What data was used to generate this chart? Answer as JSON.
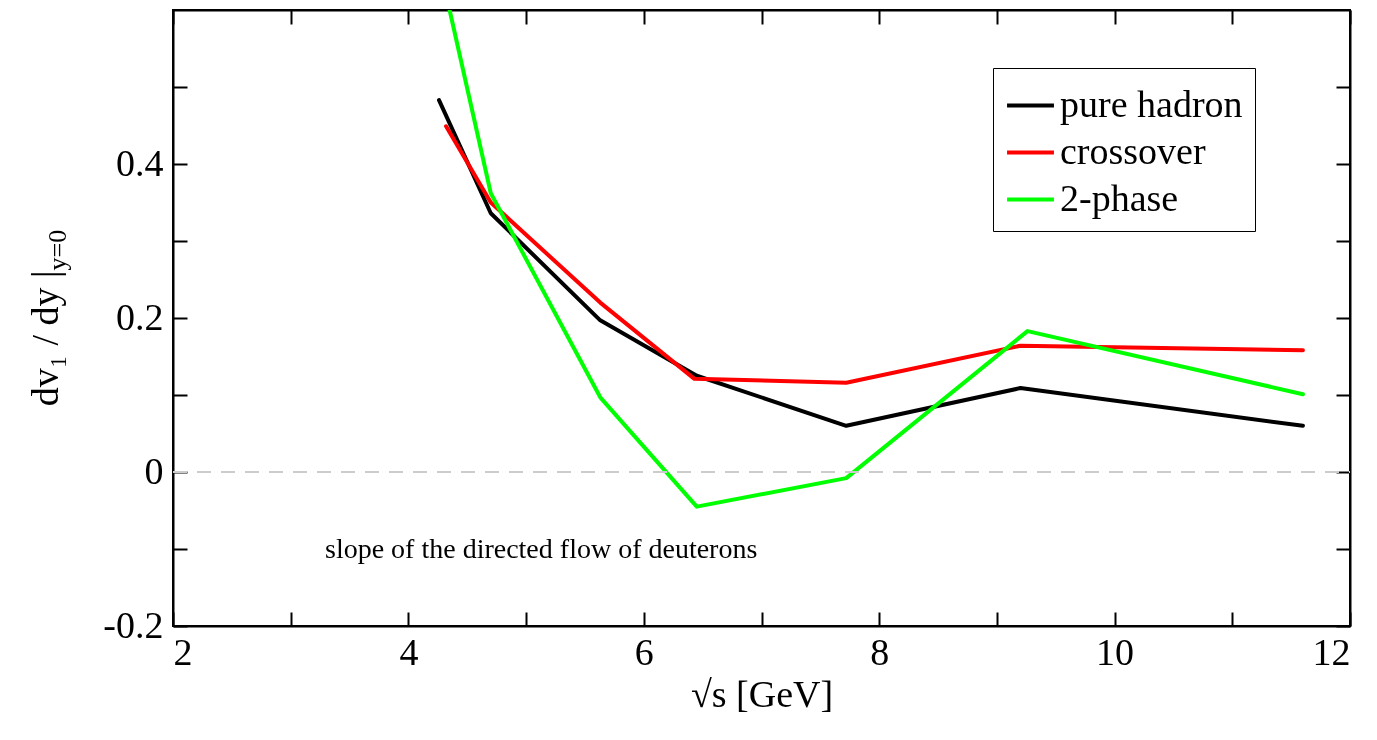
{
  "chart_data": {
    "type": "line",
    "xlabel": "√s [GeV]",
    "ylabel": "dv₁ / dy |$_{y=0}$",
    "xlim": [
      2,
      12
    ],
    "xticks": [
      2,
      {
        "value": 3,
        "label": null
      },
      4,
      {
        "value": 5,
        "label": null
      },
      6,
      {
        "value": 7,
        "label": null
      },
      8,
      {
        "value": 9,
        "label": null
      },
      10,
      {
        "value": 11,
        "label": null
      },
      12
    ],
    "ylim": [
      -0.2,
      0.6
    ],
    "yticks": [
      -0.2,
      {
        "value": -0.1,
        "label": null
      },
      0,
      {
        "value": 0.1,
        "label": null
      },
      0.2,
      {
        "value": 0.3,
        "label": null
      },
      0.4,
      {
        "value": 0.5,
        "label": null
      }
    ],
    "series": [
      {
        "name": "pure hadron",
        "color": "#000000",
        "x": [
          4.26,
          4.7,
          5.63,
          6.45,
          7.72,
          9.2,
          11.6
        ],
        "values": [
          0.483,
          0.336,
          0.197,
          0.125,
          0.06,
          0.109,
          0.06
        ]
      },
      {
        "name": "crossover",
        "color": "#ff0000",
        "x": [
          4.32,
          4.7,
          5.63,
          6.43,
          7.72,
          9.2,
          11.6
        ],
        "values": [
          0.449,
          0.35,
          0.22,
          0.121,
          0.116,
          0.164,
          0.158
        ]
      },
      {
        "name": "2-phase",
        "color": "#00ff00",
        "x": [
          4.35,
          4.7,
          5.63,
          6.45,
          7.72,
          9.26,
          11.6
        ],
        "values": [
          0.6,
          0.362,
          0.097,
          -0.045,
          -0.008,
          0.183,
          0.101
        ]
      }
    ],
    "ref_lines": [
      {
        "axis": "y",
        "value": 0,
        "color": "#cccccc",
        "line_style": "dashed"
      }
    ],
    "annotations": [
      "slope of the directed flow of deuterons"
    ],
    "legend": "top right",
    "grid": false,
    "marker": "none",
    "line_style": "solid"
  }
}
